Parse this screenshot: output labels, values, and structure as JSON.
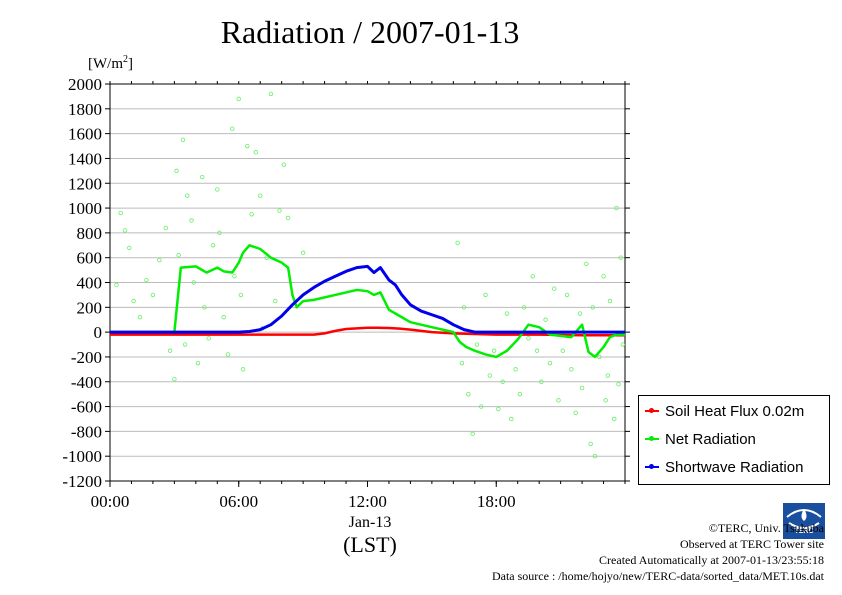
{
  "page": {
    "title": "Radiation / 2007-01-13",
    "unit_label": "[W/m²]",
    "date_label": "Jan-13",
    "xunit_label": "(LST)"
  },
  "credits": {
    "line1": "©TERC, Univ. Tsukuba",
    "line2": "Observed at TERC Tower site",
    "line3": "Created Automatically at 2007-01-13/23:55:18",
    "line4": "Data source : /home/hojyo/new/TERC-data/sorted_data/MET.10s.dat"
  },
  "logo_text": "TERC",
  "chart_data": {
    "type": "line",
    "title": "Radiation / 2007-01-13",
    "ylabel": "[W/m²]",
    "xlabel": "(LST)",
    "xlim": [
      0,
      24
    ],
    "ylim": [
      -1200,
      2000
    ],
    "xticks": [
      {
        "value": 0,
        "label": "00:00"
      },
      {
        "value": 6,
        "label": "06:00"
      },
      {
        "value": 12,
        "label": "12:00"
      },
      {
        "value": 18,
        "label": "18:00"
      }
    ],
    "yticks": [
      2000,
      1800,
      1600,
      1400,
      1200,
      1000,
      800,
      600,
      400,
      200,
      0,
      -200,
      -400,
      -600,
      -800,
      -1000,
      -1200
    ],
    "grid": true,
    "legend_position": "right",
    "series": [
      {
        "name": "Soil Heat Flux 0.02m",
        "color": "#ff0000",
        "x": [
          0,
          2,
          4,
          6,
          8,
          9.5,
          10,
          10.5,
          11,
          11.5,
          12,
          12.5,
          13,
          13.5,
          14,
          14.5,
          15,
          16,
          17,
          18,
          20,
          22,
          24
        ],
        "y": [
          -20,
          -20,
          -20,
          -20,
          -20,
          -20,
          -10,
          10,
          25,
          30,
          35,
          35,
          33,
          28,
          20,
          10,
          0,
          -10,
          -15,
          -20,
          -20,
          -25,
          -25
        ]
      },
      {
        "name": "Net Radiation",
        "color": "#00ee00",
        "x": [
          0,
          1,
          2,
          3,
          3.3,
          4,
          4.5,
          5,
          5.3,
          5.7,
          6,
          6.2,
          6.5,
          7,
          7.5,
          8,
          8.3,
          8.5,
          8.7,
          9,
          9.5,
          10,
          10.5,
          11,
          11.5,
          12,
          12.3,
          12.6,
          13,
          13.3,
          13.6,
          14,
          14.5,
          15,
          15.5,
          16,
          16.3,
          16.6,
          17,
          17.5,
          18,
          18.5,
          19,
          19.5,
          20,
          20.5,
          21,
          21.5,
          22,
          22.3,
          22.6,
          23,
          23.3,
          23.6,
          24
        ],
        "y": [
          0,
          0,
          0,
          0,
          520,
          530,
          480,
          520,
          490,
          480,
          560,
          640,
          700,
          670,
          600,
          560,
          520,
          300,
          200,
          250,
          260,
          280,
          300,
          320,
          340,
          330,
          300,
          320,
          180,
          150,
          120,
          80,
          60,
          40,
          20,
          0,
          -80,
          -120,
          -150,
          -180,
          -200,
          -150,
          -60,
          60,
          40,
          -20,
          -30,
          -40,
          60,
          -160,
          -200,
          -120,
          -40,
          -20,
          -20
        ]
      },
      {
        "name": "Shortwave Radiation",
        "color": "#0000ee",
        "x": [
          0,
          2,
          4,
          5,
          6,
          6.5,
          7,
          7.5,
          8,
          8.5,
          9,
          9.5,
          10,
          10.5,
          11,
          11.5,
          12,
          12.3,
          12.6,
          13,
          13.3,
          13.6,
          14,
          14.5,
          15,
          15.5,
          16,
          16.5,
          17,
          18,
          20,
          22,
          24
        ],
        "y": [
          0,
          0,
          0,
          0,
          0,
          5,
          20,
          60,
          130,
          220,
          300,
          360,
          410,
          450,
          490,
          520,
          530,
          480,
          520,
          420,
          380,
          300,
          220,
          170,
          140,
          110,
          60,
          20,
          0,
          0,
          0,
          0,
          0
        ]
      }
    ]
  },
  "scatter_points": [
    [
      0.3,
      380
    ],
    [
      0.5,
      960
    ],
    [
      0.7,
      820
    ],
    [
      0.9,
      680
    ],
    [
      1.1,
      250
    ],
    [
      1.4,
      120
    ],
    [
      1.7,
      420
    ],
    [
      2.0,
      300
    ],
    [
      2.3,
      580
    ],
    [
      2.6,
      840
    ],
    [
      2.8,
      -150
    ],
    [
      3.0,
      -380
    ],
    [
      3.1,
      1300
    ],
    [
      3.2,
      620
    ],
    [
      3.4,
      1550
    ],
    [
      3.5,
      -100
    ],
    [
      3.6,
      1100
    ],
    [
      3.8,
      900
    ],
    [
      3.9,
      400
    ],
    [
      4.1,
      -250
    ],
    [
      4.3,
      1250
    ],
    [
      4.4,
      200
    ],
    [
      4.6,
      -50
    ],
    [
      4.8,
      700
    ],
    [
      5.0,
      1150
    ],
    [
      5.1,
      800
    ],
    [
      5.3,
      120
    ],
    [
      5.5,
      -180
    ],
    [
      5.7,
      1640
    ],
    [
      5.8,
      450
    ],
    [
      6.0,
      1880
    ],
    [
      6.1,
      300
    ],
    [
      6.2,
      -300
    ],
    [
      6.4,
      1500
    ],
    [
      6.6,
      950
    ],
    [
      6.8,
      1450
    ],
    [
      7.0,
      1100
    ],
    [
      7.1,
      30
    ],
    [
      7.3,
      600
    ],
    [
      7.5,
      1920
    ],
    [
      7.7,
      250
    ],
    [
      7.9,
      980
    ],
    [
      8.1,
      1350
    ],
    [
      8.3,
      920
    ],
    [
      9.0,
      640
    ],
    [
      16.2,
      720
    ],
    [
      16.4,
      -250
    ],
    [
      16.5,
      200
    ],
    [
      16.7,
      -500
    ],
    [
      16.9,
      -820
    ],
    [
      17.1,
      -100
    ],
    [
      17.3,
      -600
    ],
    [
      17.5,
      300
    ],
    [
      17.7,
      -350
    ],
    [
      17.9,
      -150
    ],
    [
      18.1,
      -620
    ],
    [
      18.3,
      -400
    ],
    [
      18.5,
      150
    ],
    [
      18.7,
      -700
    ],
    [
      18.9,
      -300
    ],
    [
      19.1,
      -500
    ],
    [
      19.3,
      200
    ],
    [
      19.5,
      -50
    ],
    [
      19.7,
      450
    ],
    [
      19.9,
      -150
    ],
    [
      20.1,
      -400
    ],
    [
      20.3,
      100
    ],
    [
      20.5,
      -250
    ],
    [
      20.7,
      350
    ],
    [
      20.9,
      -550
    ],
    [
      21.1,
      -150
    ],
    [
      21.3,
      300
    ],
    [
      21.5,
      -300
    ],
    [
      21.7,
      -650
    ],
    [
      21.9,
      150
    ],
    [
      22.0,
      -450
    ],
    [
      22.2,
      550
    ],
    [
      22.4,
      -900
    ],
    [
      22.5,
      200
    ],
    [
      22.6,
      -1000
    ],
    [
      22.8,
      -200
    ],
    [
      23.0,
      450
    ],
    [
      23.1,
      -550
    ],
    [
      23.2,
      -350
    ],
    [
      23.3,
      250
    ],
    [
      23.5,
      -700
    ],
    [
      23.6,
      1000
    ],
    [
      23.7,
      -420
    ],
    [
      23.8,
      600
    ],
    [
      23.9,
      -100
    ]
  ]
}
